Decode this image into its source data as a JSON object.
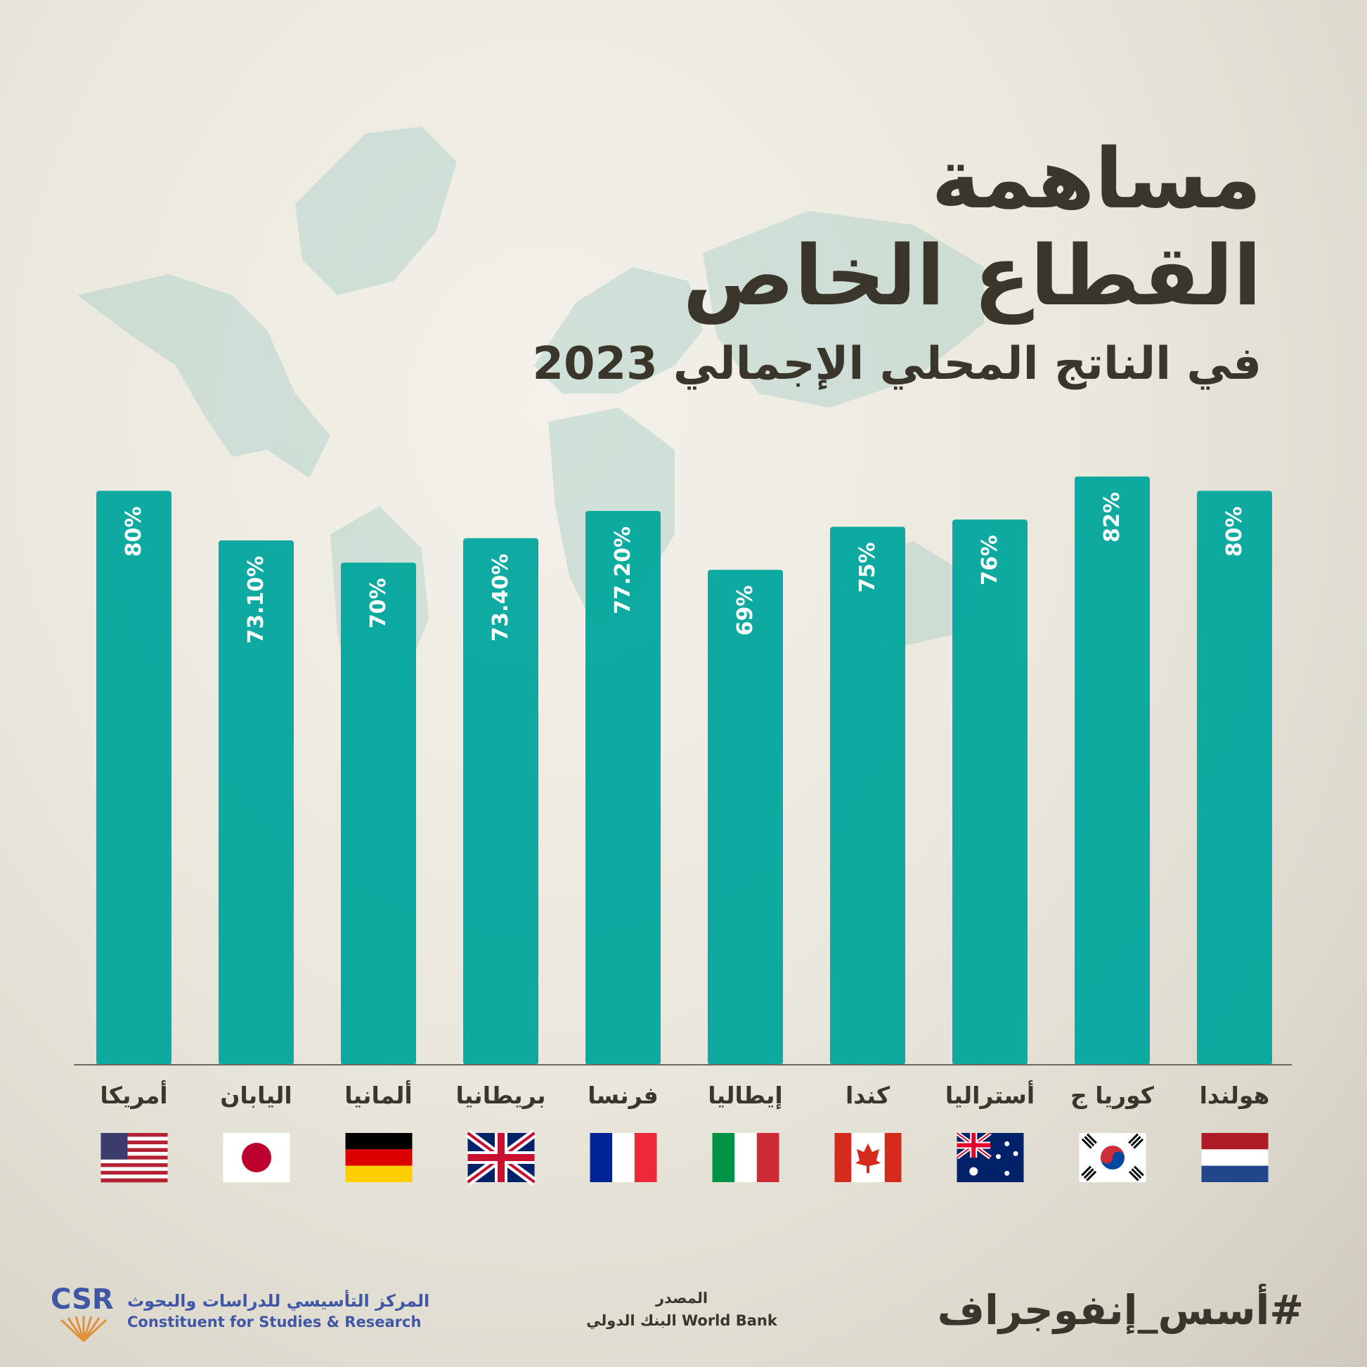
{
  "title": {
    "line1": "مساهمة",
    "line2": "القطاع الخاص",
    "line3": "في الناتج المحلي الإجمالي 2023"
  },
  "colors": {
    "bar": "#00a69c",
    "text_dark": "#3a362c",
    "logo_blue": "#3f57a6",
    "logo_orange": "#e0913a"
  },
  "chart_data": {
    "type": "bar",
    "categories": [
      "أمريكا",
      "اليابان",
      "ألمانيا",
      "بريطانيا",
      "فرنسا",
      "إيطاليا",
      "كندا",
      "أستراليا",
      "كوريا ج",
      "هولندا"
    ],
    "values": [
      80,
      73.1,
      70,
      73.4,
      77.2,
      69,
      75,
      76,
      82,
      80
    ],
    "value_labels": [
      "80%",
      "73.10%",
      "70%",
      "73.40%",
      "77.20%",
      "69%",
      "75%",
      "76%",
      "82%",
      "80%"
    ],
    "flags": [
      "us-flag",
      "japan-flag",
      "germany-flag",
      "uk-flag",
      "france-flag",
      "italy-flag",
      "canada-flag",
      "australia-flag",
      "south-korea-flag",
      "netherlands-flag"
    ],
    "grid": false,
    "legend": "none"
  },
  "footer": {
    "hashtag": "#أسس_إنفوجراف",
    "source_label": "المصدر",
    "source_value": "البنك الدولي World Bank",
    "logo_letters": "CSR",
    "logo_ar": "المركز التأسيسي للدراسات والبحوث",
    "logo_en": "Constituent for Studies & Research"
  }
}
